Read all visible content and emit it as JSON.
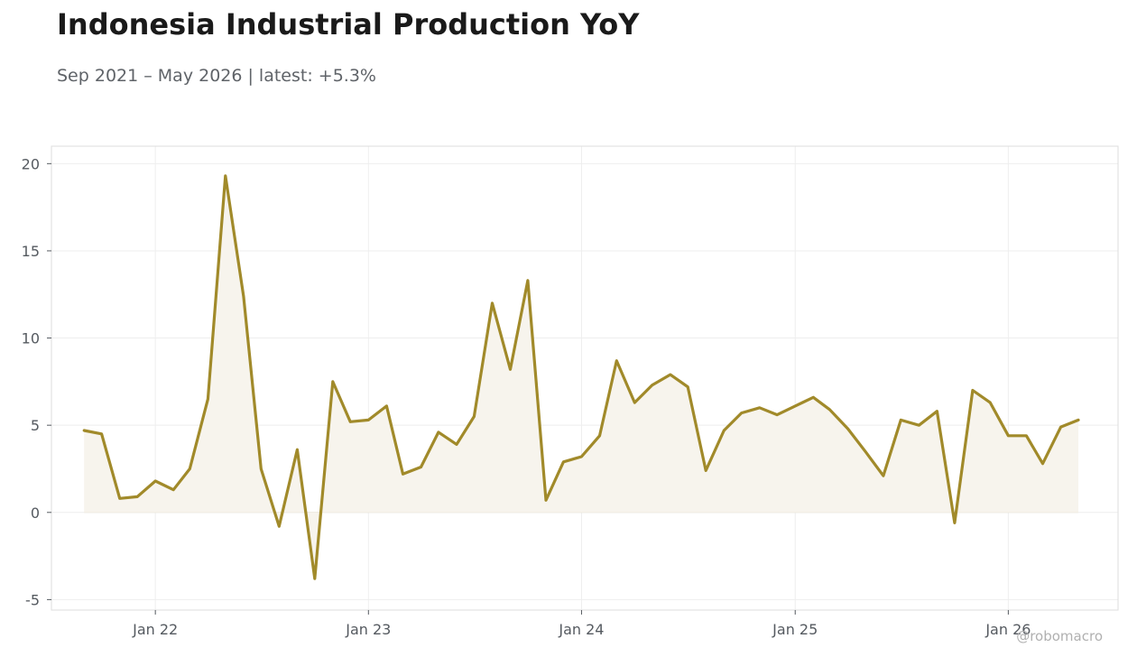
{
  "header": {
    "title": "Indonesia Industrial Production YoY",
    "subtitle": "Sep 2021 – May 2026 | latest: +5.3%"
  },
  "watermark": "@robomacro",
  "colors": {
    "line": "#a18a2a",
    "fill": "#f7f4ed",
    "grid": "#eeeeee",
    "frame": "#dddddd"
  },
  "chart_data": {
    "type": "area",
    "title": "Indonesia Industrial Production YoY",
    "subtitle": "Sep 2021 – May 2026 | latest: +5.3%",
    "xlabel": "",
    "ylabel": "",
    "grid": true,
    "ylim": [
      -5.6,
      21
    ],
    "xlim": [
      "2021-07-07",
      "2026-07-08"
    ],
    "y_ticks": [
      -5,
      0,
      5,
      10,
      15,
      20
    ],
    "x_ticks": [
      {
        "date": "2022-01-01",
        "label": "Jan 22"
      },
      {
        "date": "2023-01-01",
        "label": "Jan 23"
      },
      {
        "date": "2024-01-01",
        "label": "Jan 24"
      },
      {
        "date": "2025-01-01",
        "label": "Jan 25"
      },
      {
        "date": "2026-01-01",
        "label": "Jan 26"
      }
    ],
    "x": [
      "2021-09",
      "2021-10",
      "2021-11",
      "2021-12",
      "2022-01",
      "2022-02",
      "2022-03",
      "2022-04",
      "2022-05",
      "2022-06",
      "2022-07",
      "2022-08",
      "2022-09",
      "2022-10",
      "2022-11",
      "2022-12",
      "2023-01",
      "2023-02",
      "2023-03",
      "2023-04",
      "2023-05",
      "2023-06",
      "2023-07",
      "2023-08",
      "2023-09",
      "2023-10",
      "2023-11",
      "2023-12",
      "2024-01",
      "2024-02",
      "2024-03",
      "2024-04",
      "2024-05",
      "2024-06",
      "2024-07",
      "2024-08",
      "2024-09",
      "2024-10",
      "2024-11",
      "2024-12",
      "2025-01",
      "2025-02",
      "2025-03",
      "2025-04",
      "2025-05",
      "2025-06",
      "2025-07",
      "2025-08",
      "2025-09",
      "2025-10",
      "2025-11",
      "2025-12",
      "2026-01",
      "2026-02",
      "2026-03",
      "2026-04",
      "2026-05"
    ],
    "series": [
      {
        "values": [
          4.7,
          4.5,
          0.8,
          0.9,
          1.8,
          1.3,
          2.5,
          6.5,
          19.3,
          12.4,
          2.5,
          -0.8,
          3.6,
          -3.8,
          7.5,
          5.2,
          5.3,
          6.1,
          2.2,
          2.6,
          4.6,
          3.9,
          5.5,
          12.0,
          8.2,
          13.3,
          0.7,
          2.9,
          3.2,
          4.4,
          8.7,
          6.3,
          7.3,
          7.9,
          7.2,
          2.4,
          4.7,
          5.7,
          6.0,
          5.6,
          6.1,
          6.6,
          5.9,
          4.8,
          3.5,
          2.1,
          5.3,
          5.0,
          5.8,
          -0.6,
          7.0,
          6.3,
          4.4,
          4.4,
          2.8,
          4.9,
          5.3
        ]
      }
    ]
  }
}
